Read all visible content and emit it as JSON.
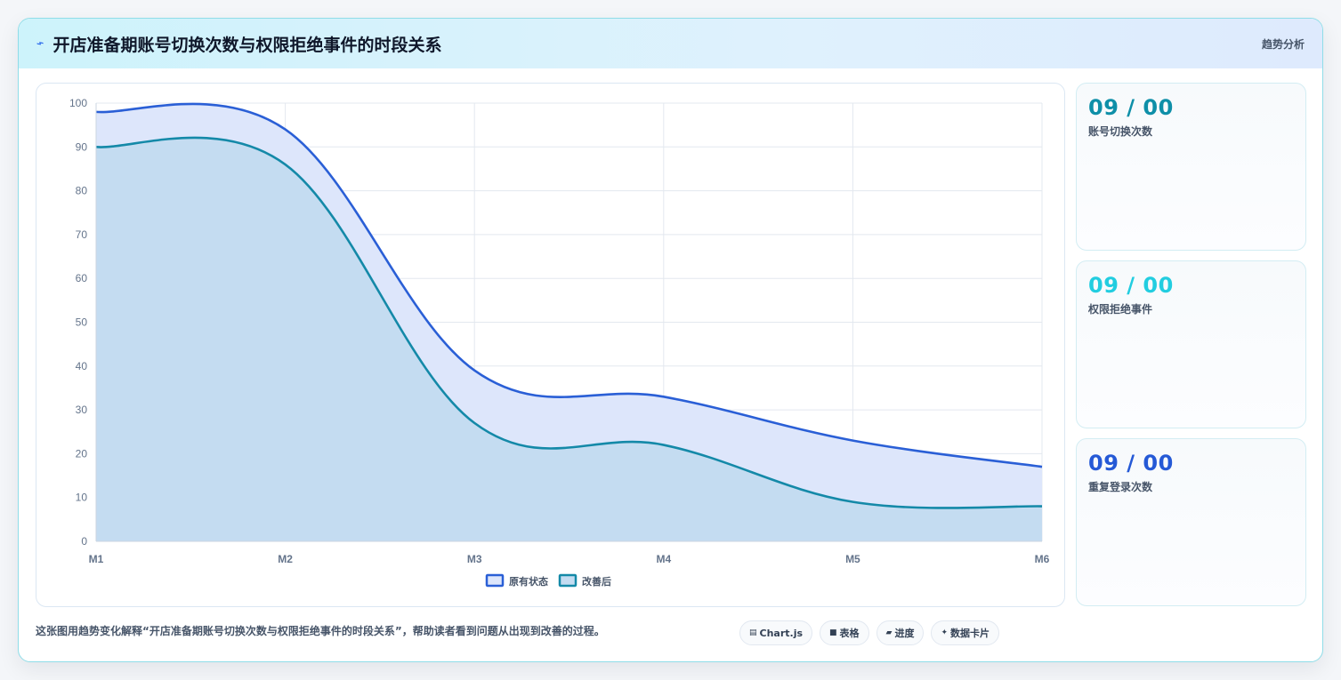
{
  "header": {
    "icon": "lightning-icon",
    "title": "开店准备期账号切换次数与权限拒绝事件的时段关系",
    "badge": "趋势分析"
  },
  "cards": [
    {
      "value": "09 / 00",
      "label": "账号切换次数",
      "color": "#0e8fa8"
    },
    {
      "value": "09 / 00",
      "label": "权限拒绝事件",
      "color": "#22cde0"
    },
    {
      "value": "09 / 00",
      "label": "重复登录次数",
      "color": "#2559d6"
    }
  ],
  "footer": {
    "text": "这张图用趋势变化解释“开店准备期账号切换次数与权限拒绝事件的时段关系”，帮助读者看到问题从出现到改善的过程。",
    "chips": [
      {
        "icon": "chart-icon",
        "glyph": "▤",
        "label": "Chart.js"
      },
      {
        "icon": "table-icon",
        "glyph": "■",
        "label": "表格"
      },
      {
        "icon": "progress-icon",
        "glyph": "▰",
        "label": "进度"
      },
      {
        "icon": "sparkle-icon",
        "glyph": "✦",
        "label": "数据卡片"
      }
    ]
  },
  "chart_data": {
    "type": "area",
    "categories": [
      "M1",
      "M2",
      "M3",
      "M4",
      "M5",
      "M6"
    ],
    "ylim": [
      0,
      100
    ],
    "yticks": [
      0,
      10,
      20,
      30,
      40,
      50,
      60,
      70,
      80,
      90,
      100
    ],
    "grid": true,
    "legend_position": "bottom",
    "series": [
      {
        "name": "原有状态",
        "values": [
          98,
          94,
          39,
          33,
          23,
          17
        ],
        "color": "#2a5fd6",
        "fill": "#dde6fb"
      },
      {
        "name": "改善后",
        "values": [
          90,
          86,
          27,
          22,
          9,
          8
        ],
        "color": "#1489a8",
        "fill": "#c4dcf1"
      }
    ]
  }
}
